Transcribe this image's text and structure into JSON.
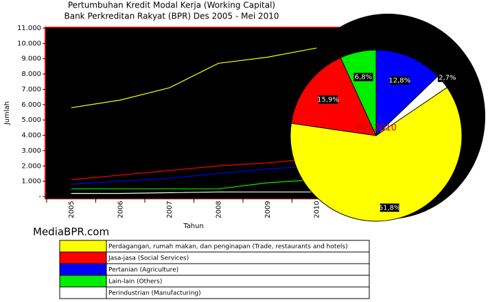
{
  "chart_data": [
    {
      "type": "line",
      "title": "Pertumbuhan Kredit Modal Kerja (Working Capital)",
      "subtitle": "Bank Perkreditan Rakyat (BPR) Des 2005 - Mei 2010",
      "y_label": "Jumlah",
      "x_label": "Tahun",
      "watermark": "MediaBPR.com",
      "categories": [
        "2005",
        "2006",
        "2007",
        "2008",
        "2009",
        "2010"
      ],
      "ylim": [
        0,
        11000
      ],
      "yticks": [
        {
          "value": 0,
          "label": "-"
        },
        {
          "value": 1000,
          "label": "1.000"
        },
        {
          "value": 2000,
          "label": "2.000"
        },
        {
          "value": 3000,
          "label": "3.000"
        },
        {
          "value": 4000,
          "label": "4.000"
        },
        {
          "value": 5000,
          "label": "5.000"
        },
        {
          "value": 6000,
          "label": "6.000"
        },
        {
          "value": 7000,
          "label": "7.000"
        },
        {
          "value": 8000,
          "label": "8.000"
        },
        {
          "value": 9000,
          "label": "9.000"
        },
        {
          "value": 10000,
          "label": "10.000"
        },
        {
          "value": 11000,
          "label": "11.000"
        }
      ],
      "series": [
        {
          "name": "Perdagangan, rumah makan, dan penginapan (Trade, restaurants and hotels)",
          "color": "#ffff00",
          "values": [
            5800,
            6300,
            7100,
            8700,
            9100,
            9700
          ]
        },
        {
          "name": "Jasa-jasa (Social Services)",
          "color": "#ff0000",
          "values": [
            1100,
            1400,
            1700,
            2000,
            2200,
            2500
          ]
        },
        {
          "name": "Pertanian (Agriculture)",
          "color": "#0000ff",
          "values": [
            800,
            1000,
            1200,
            1500,
            1800,
            2000
          ]
        },
        {
          "name": "Lain-lain (Others)",
          "color": "#00ee00",
          "values": [
            500,
            500,
            500,
            500,
            900,
            1100
          ]
        },
        {
          "name": "Perindustrian (Manufacturing)",
          "color": "#ffffff",
          "values": [
            200,
            200,
            250,
            300,
            300,
            300
          ]
        }
      ]
    },
    {
      "type": "pie",
      "title": "Mei 2010",
      "values": [
        12.8,
        2.7,
        61.8,
        15.9,
        6.8
      ],
      "value_labels": [
        "12,8%",
        "2,7%",
        "61,8%",
        "15,9%",
        "6,8%"
      ],
      "colors": [
        "#0000ff",
        "#ffffff",
        "#ffff00",
        "#ff0000",
        "#00ee00"
      ]
    }
  ]
}
